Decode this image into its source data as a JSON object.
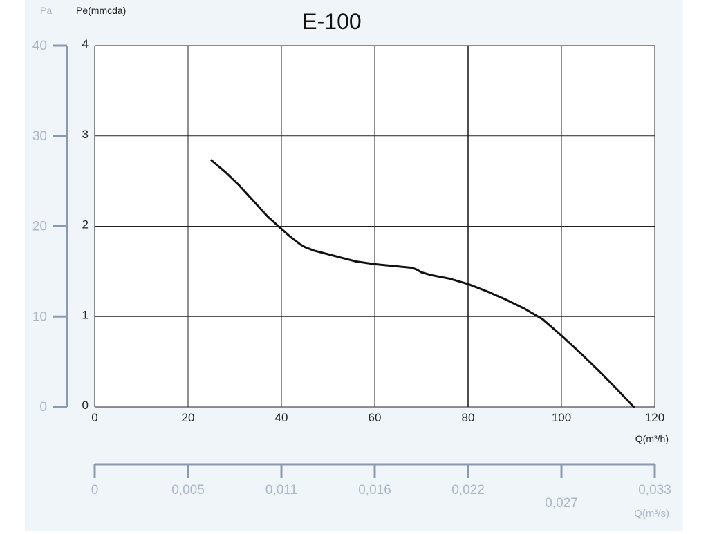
{
  "chart_data": {
    "type": "line",
    "title": "E-100",
    "xlabel": "Q(m³/h)",
    "ylabel": "Pe(mmcda)",
    "xlim": [
      0,
      120
    ],
    "ylim": [
      0,
      4
    ],
    "x_ticks": [
      "0",
      "20",
      "40",
      "60",
      "80",
      "100",
      "120"
    ],
    "y_ticks": [
      "0",
      "1",
      "2",
      "3",
      "4"
    ],
    "grid": true,
    "series": [
      {
        "x": [
          25,
          28,
          31,
          34,
          37,
          40,
          42,
          44,
          45,
          47,
          50,
          53,
          56,
          60,
          64,
          68,
          69,
          70,
          72,
          76,
          80,
          84,
          88,
          92,
          96,
          100,
          104,
          108,
          112,
          115.5
        ],
        "y": [
          2.73,
          2.6,
          2.45,
          2.28,
          2.11,
          1.97,
          1.88,
          1.8,
          1.77,
          1.73,
          1.69,
          1.65,
          1.61,
          1.58,
          1.56,
          1.54,
          1.52,
          1.49,
          1.46,
          1.42,
          1.36,
          1.28,
          1.19,
          1.09,
          0.97,
          0.79,
          0.6,
          0.4,
          0.19,
          0.0
        ]
      }
    ],
    "secondary_y": {
      "label": "Pa",
      "ticks": [
        "0",
        "10",
        "20",
        "30",
        "40"
      ]
    },
    "secondary_x": {
      "label": "Q(m³/s)",
      "ticks": [
        "0",
        "0,005",
        "0,011",
        "0,016",
        "0,022",
        "0,027",
        "0,033"
      ]
    }
  },
  "colors": {
    "background_panel": "#f0f5f9",
    "plot_background": "#ffffff",
    "grid": "#222222",
    "curve": "#111111",
    "secondary_axis": "#8a9bb0",
    "secondary_text": "#aab7c6"
  }
}
